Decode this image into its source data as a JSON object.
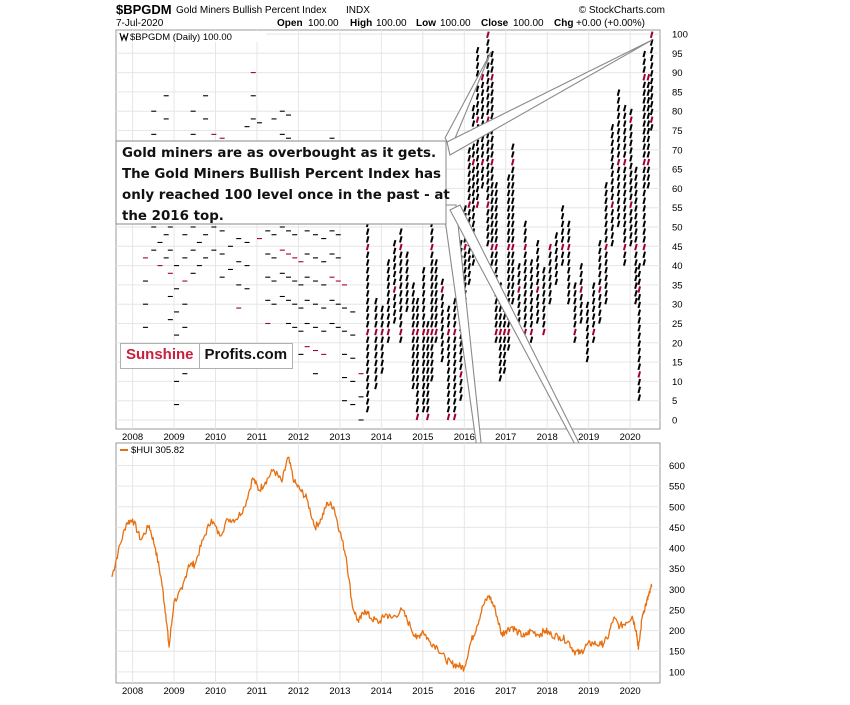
{
  "header": {
    "symbol": "$BPGDM",
    "name": "Gold Miners Bullish Percent Index",
    "exchange": "INDX",
    "date": "7-Jul-2020",
    "open_label": "Open",
    "open_value": "100.00",
    "high_label": "High",
    "high_value": "100.00",
    "low_label": "Low",
    "low_value": "100.00",
    "close_label": "Close",
    "close_value": "100.00",
    "chg_label": "Chg",
    "chg_value": "+0.00 (+0.00%)",
    "source": "© StockCharts.com"
  },
  "annotation": {
    "lines": [
      "Gold miners are as overbought as it gets.",
      "The Gold Miners Bullish Percent Index has",
      "only reached 100 level once in the past - at",
      "the 2016 top."
    ]
  },
  "brand": {
    "part1": "Sunshine",
    "part2": "Profits.com"
  },
  "chart_data": [
    {
      "type": "point-and-figure",
      "legend": "$BPGDM (Daily) 100.00",
      "ylim": [
        0,
        100
      ],
      "y_ticks": [
        0,
        5,
        10,
        15,
        20,
        25,
        30,
        35,
        40,
        45,
        50,
        55,
        60,
        65,
        70,
        75,
        80,
        85,
        90,
        95,
        100
      ],
      "x_ticks": [
        "2008",
        "2009",
        "2010",
        "2011",
        "2012",
        "2013",
        "2014",
        "2015",
        "2016",
        "2017",
        "2018",
        "2019",
        "2020"
      ],
      "grid": true,
      "series_color": "#000000",
      "highlight_color": "#a00030",
      "columns": [
        {
          "t": 2008.25,
          "lo": 24,
          "hi": 47
        },
        {
          "t": 2008.45,
          "lo": 40,
          "hi": 80
        },
        {
          "t": 2008.6,
          "lo": 40,
          "hi": 60
        },
        {
          "t": 2008.75,
          "lo": 42,
          "hi": 88
        },
        {
          "t": 2008.85,
          "lo": 24,
          "hi": 50
        },
        {
          "t": 2009.0,
          "lo": 0,
          "hi": 40
        },
        {
          "t": 2009.2,
          "lo": 10,
          "hi": 60
        },
        {
          "t": 2009.4,
          "lo": 38,
          "hi": 80
        },
        {
          "t": 2009.55,
          "lo": 40,
          "hi": 75
        },
        {
          "t": 2009.7,
          "lo": 42,
          "hi": 85
        },
        {
          "t": 2009.9,
          "lo": 40,
          "hi": 75
        },
        {
          "t": 2010.1,
          "lo": 35,
          "hi": 78
        },
        {
          "t": 2010.3,
          "lo": 35,
          "hi": 70
        },
        {
          "t": 2010.5,
          "lo": 25,
          "hi": 55
        },
        {
          "t": 2010.7,
          "lo": 30,
          "hi": 80
        },
        {
          "t": 2010.85,
          "lo": 50,
          "hi": 92
        },
        {
          "t": 2011.0,
          "lo": 45,
          "hi": 80
        },
        {
          "t": 2011.2,
          "lo": 25,
          "hi": 55
        },
        {
          "t": 2011.35,
          "lo": 30,
          "hi": 80
        },
        {
          "t": 2011.55,
          "lo": 30,
          "hi": 85
        },
        {
          "t": 2011.7,
          "lo": 25,
          "hi": 80
        },
        {
          "t": 2011.85,
          "lo": 20,
          "hi": 50
        },
        {
          "t": 2012.0,
          "lo": 15,
          "hi": 45
        },
        {
          "t": 2012.15,
          "lo": 15,
          "hi": 55
        },
        {
          "t": 2012.35,
          "lo": 12,
          "hi": 48
        },
        {
          "t": 2012.55,
          "lo": 15,
          "hi": 50
        },
        {
          "t": 2012.75,
          "lo": 25,
          "hi": 75
        },
        {
          "t": 2012.9,
          "lo": 20,
          "hi": 60
        },
        {
          "t": 2013.05,
          "lo": 5,
          "hi": 40
        },
        {
          "t": 2013.25,
          "lo": 2,
          "hi": 30
        },
        {
          "t": 2013.45,
          "lo": 0,
          "hi": 15
        },
        {
          "t": 2013.65,
          "lo": 2,
          "hi": 60
        },
        {
          "t": 2013.85,
          "lo": 8,
          "hi": 30
        },
        {
          "t": 2014.0,
          "lo": 12,
          "hi": 28
        },
        {
          "t": 2014.15,
          "lo": 20,
          "hi": 40
        },
        {
          "t": 2014.3,
          "lo": 25,
          "hi": 45
        },
        {
          "t": 2014.45,
          "lo": 20,
          "hi": 48
        },
        {
          "t": 2014.6,
          "lo": 28,
          "hi": 42
        },
        {
          "t": 2014.75,
          "lo": 8,
          "hi": 35
        },
        {
          "t": 2014.85,
          "lo": 0,
          "hi": 30
        },
        {
          "t": 2015.0,
          "lo": 2,
          "hi": 38
        },
        {
          "t": 2015.1,
          "lo": 0,
          "hi": 25
        },
        {
          "t": 2015.2,
          "lo": 10,
          "hi": 50
        },
        {
          "t": 2015.3,
          "lo": 20,
          "hi": 40
        },
        {
          "t": 2015.45,
          "lo": 15,
          "hi": 35
        },
        {
          "t": 2015.6,
          "lo": 0,
          "hi": 28
        },
        {
          "t": 2015.75,
          "lo": 0,
          "hi": 30
        },
        {
          "t": 2015.9,
          "lo": 5,
          "hi": 45
        },
        {
          "t": 2016.0,
          "lo": 20,
          "hi": 55
        },
        {
          "t": 2016.1,
          "lo": 35,
          "hi": 70
        },
        {
          "t": 2016.2,
          "lo": 40,
          "hi": 80
        },
        {
          "t": 2016.3,
          "lo": 55,
          "hi": 95
        },
        {
          "t": 2016.42,
          "lo": 60,
          "hi": 88
        },
        {
          "t": 2016.55,
          "lo": 45,
          "hi": 100
        },
        {
          "t": 2016.65,
          "lo": 40,
          "hi": 95
        },
        {
          "t": 2016.75,
          "lo": 20,
          "hi": 60
        },
        {
          "t": 2016.85,
          "lo": 10,
          "hi": 35
        },
        {
          "t": 2016.95,
          "lo": 12,
          "hi": 28
        },
        {
          "t": 2017.05,
          "lo": 18,
          "hi": 62
        },
        {
          "t": 2017.15,
          "lo": 30,
          "hi": 70
        },
        {
          "t": 2017.3,
          "lo": 25,
          "hi": 40
        },
        {
          "t": 2017.45,
          "lo": 20,
          "hi": 50
        },
        {
          "t": 2017.6,
          "lo": 20,
          "hi": 40
        },
        {
          "t": 2017.75,
          "lo": 25,
          "hi": 45
        },
        {
          "t": 2017.9,
          "lo": 22,
          "hi": 38
        },
        {
          "t": 2018.05,
          "lo": 30,
          "hi": 45
        },
        {
          "t": 2018.2,
          "lo": 35,
          "hi": 48
        },
        {
          "t": 2018.35,
          "lo": 40,
          "hi": 55
        },
        {
          "t": 2018.5,
          "lo": 30,
          "hi": 50
        },
        {
          "t": 2018.65,
          "lo": 20,
          "hi": 35
        },
        {
          "t": 2018.8,
          "lo": 25,
          "hi": 40
        },
        {
          "t": 2018.95,
          "lo": 15,
          "hi": 30
        },
        {
          "t": 2019.1,
          "lo": 20,
          "hi": 35
        },
        {
          "t": 2019.25,
          "lo": 25,
          "hi": 45
        },
        {
          "t": 2019.4,
          "lo": 30,
          "hi": 60
        },
        {
          "t": 2019.55,
          "lo": 45,
          "hi": 75
        },
        {
          "t": 2019.7,
          "lo": 50,
          "hi": 85
        },
        {
          "t": 2019.85,
          "lo": 40,
          "hi": 80
        },
        {
          "t": 2020.0,
          "lo": 45,
          "hi": 80
        },
        {
          "t": 2020.12,
          "lo": 30,
          "hi": 65
        },
        {
          "t": 2020.2,
          "lo": 5,
          "hi": 40
        },
        {
          "t": 2020.32,
          "lo": 40,
          "hi": 95
        },
        {
          "t": 2020.42,
          "lo": 60,
          "hi": 88
        },
        {
          "t": 2020.5,
          "lo": 75,
          "hi": 100
        }
      ]
    },
    {
      "type": "line",
      "legend": "$HUI 305.82",
      "series_color": "#e87010",
      "ylim": [
        90,
        640
      ],
      "y_ticks": [
        100,
        150,
        200,
        250,
        300,
        350,
        400,
        450,
        500,
        550,
        600
      ],
      "x_ticks": [
        "2008",
        "2009",
        "2010",
        "2011",
        "2012",
        "2013",
        "2014",
        "2015",
        "2016",
        "2017",
        "2018",
        "2019",
        "2020"
      ],
      "grid": true,
      "points": [
        [
          2007.5,
          330
        ],
        [
          2007.65,
          390
        ],
        [
          2007.85,
          460
        ],
        [
          2008.0,
          470
        ],
        [
          2008.2,
          420
        ],
        [
          2008.4,
          455
        ],
        [
          2008.55,
          400
        ],
        [
          2008.7,
          320
        ],
        [
          2008.8,
          240
        ],
        [
          2008.88,
          160
        ],
        [
          2009.0,
          270
        ],
        [
          2009.2,
          300
        ],
        [
          2009.35,
          360
        ],
        [
          2009.5,
          360
        ],
        [
          2009.7,
          420
        ],
        [
          2009.9,
          470
        ],
        [
          2010.1,
          430
        ],
        [
          2010.3,
          470
        ],
        [
          2010.5,
          470
        ],
        [
          2010.7,
          500
        ],
        [
          2010.9,
          570
        ],
        [
          2011.05,
          540
        ],
        [
          2011.2,
          560
        ],
        [
          2011.4,
          590
        ],
        [
          2011.6,
          560
        ],
        [
          2011.75,
          620
        ],
        [
          2011.9,
          560
        ],
        [
          2012.05,
          540
        ],
        [
          2012.2,
          520
        ],
        [
          2012.4,
          450
        ],
        [
          2012.55,
          470
        ],
        [
          2012.7,
          510
        ],
        [
          2012.85,
          500
        ],
        [
          2013.0,
          440
        ],
        [
          2013.15,
          380
        ],
        [
          2013.3,
          260
        ],
        [
          2013.45,
          220
        ],
        [
          2013.6,
          250
        ],
        [
          2013.75,
          230
        ],
        [
          2013.95,
          220
        ],
        [
          2014.1,
          240
        ],
        [
          2014.25,
          230
        ],
        [
          2014.5,
          250
        ],
        [
          2014.7,
          210
        ],
        [
          2014.85,
          180
        ],
        [
          2015.0,
          200
        ],
        [
          2015.15,
          175
        ],
        [
          2015.35,
          160
        ],
        [
          2015.55,
          130
        ],
        [
          2015.7,
          120
        ],
        [
          2015.85,
          115
        ],
        [
          2016.0,
          110
        ],
        [
          2016.15,
          170
        ],
        [
          2016.3,
          210
        ],
        [
          2016.45,
          260
        ],
        [
          2016.6,
          285
        ],
        [
          2016.75,
          250
        ],
        [
          2016.9,
          190
        ],
        [
          2017.0,
          200
        ],
        [
          2017.15,
          210
        ],
        [
          2017.3,
          195
        ],
        [
          2017.45,
          185
        ],
        [
          2017.6,
          200
        ],
        [
          2017.8,
          190
        ],
        [
          2017.95,
          200
        ],
        [
          2018.1,
          190
        ],
        [
          2018.3,
          185
        ],
        [
          2018.5,
          175
        ],
        [
          2018.65,
          150
        ],
        [
          2018.8,
          145
        ],
        [
          2018.95,
          165
        ],
        [
          2019.1,
          170
        ],
        [
          2019.3,
          165
        ],
        [
          2019.45,
          180
        ],
        [
          2019.6,
          230
        ],
        [
          2019.75,
          210
        ],
        [
          2019.9,
          220
        ],
        [
          2020.05,
          235
        ],
        [
          2020.15,
          200
        ],
        [
          2020.2,
          155
        ],
        [
          2020.3,
          240
        ],
        [
          2020.4,
          270
        ],
        [
          2020.45,
          285
        ],
        [
          2020.52,
          306
        ]
      ]
    }
  ]
}
